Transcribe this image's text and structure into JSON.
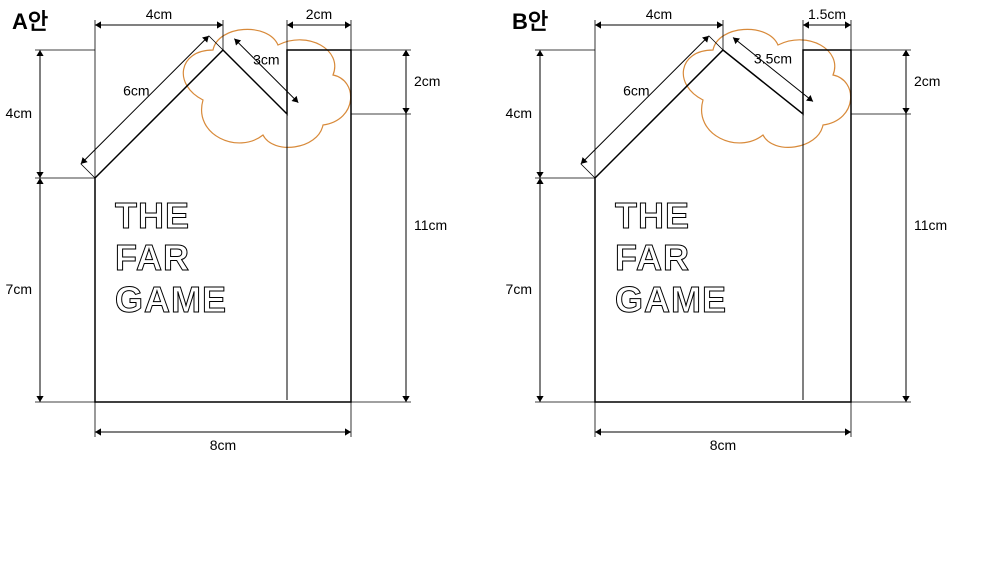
{
  "panels": [
    {
      "title": "A안",
      "logo": {
        "lines": [
          "THE",
          "FAR",
          "GAME"
        ],
        "fontsize": 36
      },
      "scale": 32,
      "shape_cm": {
        "width": 8,
        "total_height": 11,
        "lower_height": 7,
        "upper_left_height": 4,
        "top_left_width": 4,
        "top_right_width": 2,
        "notch_depth": 2,
        "diag_len": 6,
        "notch_diag": 3
      },
      "dims": [
        {
          "id": "top-left-4cm",
          "label": "4cm",
          "orient": "h-top"
        },
        {
          "id": "top-right-2cm",
          "label": "2cm",
          "orient": "h-top"
        },
        {
          "id": "left-4cm",
          "label": "4cm",
          "orient": "v-left"
        },
        {
          "id": "left-7cm",
          "label": "7cm",
          "orient": "v-left"
        },
        {
          "id": "right-2cm",
          "label": "2cm",
          "orient": "v-right"
        },
        {
          "id": "right-11cm",
          "label": "11cm",
          "orient": "v-right"
        },
        {
          "id": "bottom-8cm",
          "label": "8cm",
          "orient": "h-bottom"
        },
        {
          "id": "diag-6cm",
          "label": "6cm",
          "orient": "diag"
        },
        {
          "id": "notch-3cm",
          "label": "3cm",
          "orient": "diag-r"
        }
      ],
      "colors": {
        "outline": "#000000",
        "dim": "#000000",
        "cloud": "#d88a3a",
        "bg": "#ffffff"
      }
    },
    {
      "title": "B안",
      "logo": {
        "lines": [
          "THE",
          "FAR",
          "GAME"
        ],
        "fontsize": 36
      },
      "scale": 32,
      "shape_cm": {
        "width": 8,
        "total_height": 11,
        "lower_height": 7,
        "upper_left_height": 4,
        "top_left_width": 4,
        "top_right_width": 1.5,
        "notch_depth": 2,
        "diag_len": 6,
        "notch_diag": 3.5
      },
      "dims": [
        {
          "id": "top-left-4cm",
          "label": "4cm",
          "orient": "h-top"
        },
        {
          "id": "top-right-1.5cm",
          "label": "1.5cm",
          "orient": "h-top"
        },
        {
          "id": "left-4cm",
          "label": "4cm",
          "orient": "v-left"
        },
        {
          "id": "left-7cm",
          "label": "7cm",
          "orient": "v-left"
        },
        {
          "id": "right-2cm",
          "label": "2cm",
          "orient": "v-right"
        },
        {
          "id": "right-11cm",
          "label": "11cm",
          "orient": "v-right"
        },
        {
          "id": "bottom-8cm",
          "label": "8cm",
          "orient": "h-bottom"
        },
        {
          "id": "diag-6cm",
          "label": "6cm",
          "orient": "diag"
        },
        {
          "id": "notch-3.5cm",
          "label": "3.5cm",
          "orient": "diag-r"
        }
      ],
      "colors": {
        "outline": "#000000",
        "dim": "#000000",
        "cloud": "#d88a3a",
        "bg": "#ffffff"
      }
    }
  ]
}
